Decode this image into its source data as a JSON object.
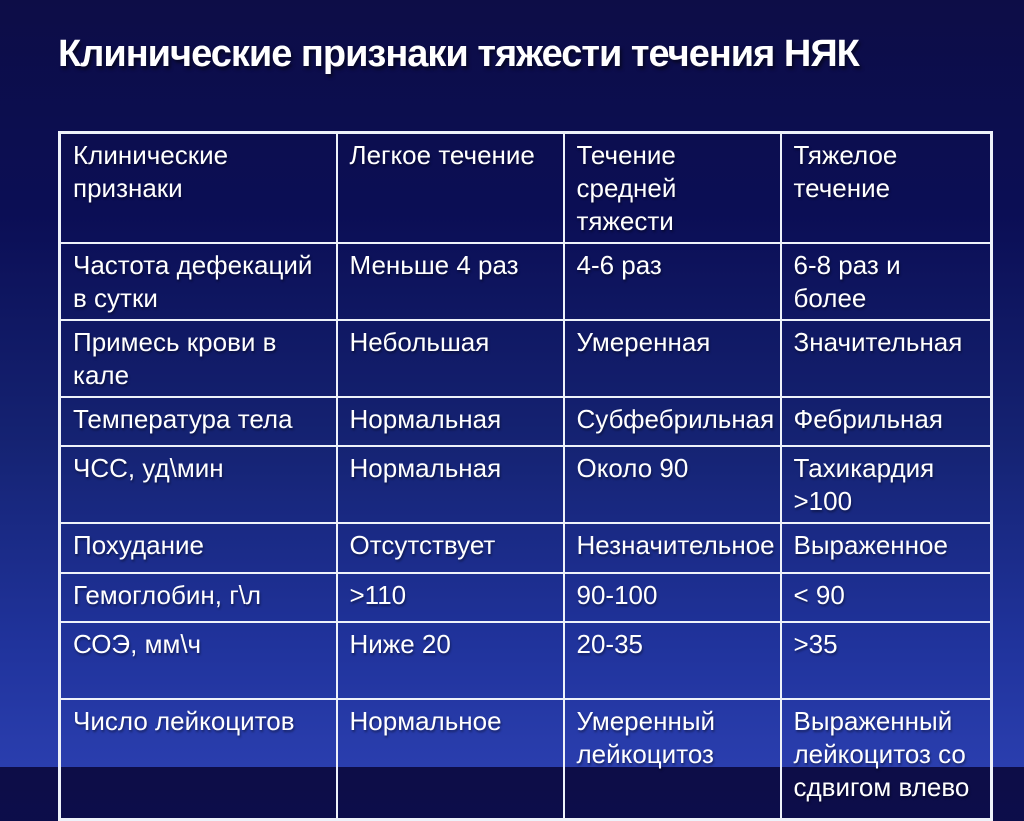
{
  "slide": {
    "title": "Клинические признаки тяжести течения НЯК"
  },
  "table": {
    "columns": [
      "Клинические признаки",
      "Легкое течение",
      "Течение средней тяжести",
      "Тяжелое течение"
    ],
    "rows": [
      [
        "Частота дефекаций в сутки",
        "Меньше 4 раз",
        "4-6 раз",
        "6-8 раз и более"
      ],
      [
        "Примесь крови в кале",
        "Небольшая",
        "Умеренная",
        "Значительная"
      ],
      [
        "Температура тела",
        "Нормальная",
        "Субфебрильная",
        "Фебрильная"
      ],
      [
        "ЧСС, уд\\мин",
        "Нормальная",
        "Около 90",
        "Тахикардия >100"
      ],
      [
        "Похудание",
        "Отсутствует",
        "Незначительное",
        "Выраженное"
      ],
      [
        "Гемоглобин, г\\л",
        ">110",
        "90-100",
        "< 90"
      ],
      [
        "СОЭ, мм\\ч",
        "Ниже 20",
        "20-35",
        ">35"
      ],
      [
        "Число лейкоцитов",
        "Нормальное",
        "Умеренный лейкоцитоз",
        "Выраженный лейкоцитоз со сдвигом влево"
      ]
    ]
  },
  "colors": {
    "background_top": "#0d0d47",
    "background_bottom": "#2a3eae",
    "table_border": "#eef2fa",
    "text": "#ffffff"
  }
}
